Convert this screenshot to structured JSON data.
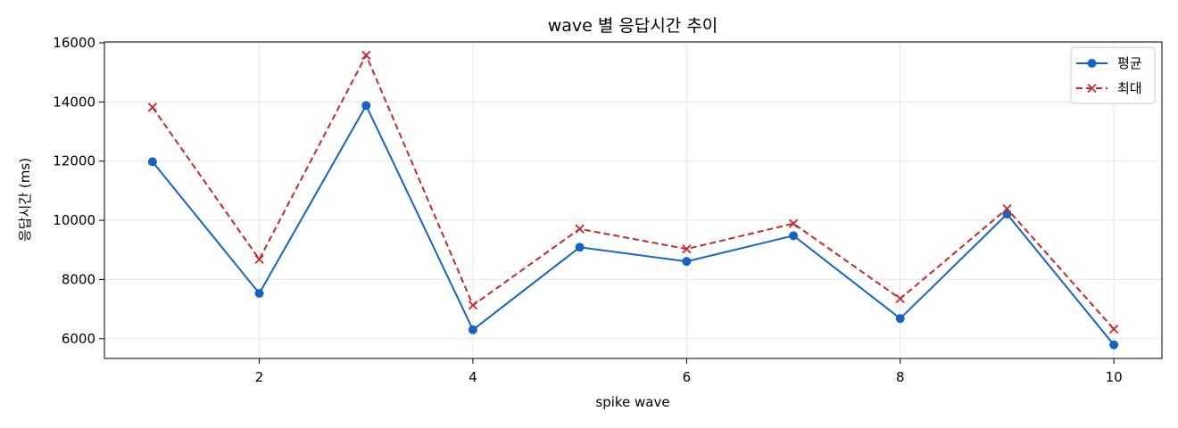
{
  "chart_data": {
    "type": "line",
    "title": "wave 별 응답시간 추이",
    "xlabel": "spike wave",
    "ylabel": "응답시간 (ms)",
    "x": [
      1,
      2,
      3,
      4,
      5,
      6,
      7,
      8,
      9,
      10
    ],
    "xlim": [
      0.55,
      10.45
    ],
    "ylim": [
      5330,
      16030
    ],
    "xticks": [
      2,
      4,
      6,
      8,
      10
    ],
    "yticks": [
      6000,
      8000,
      10000,
      12000,
      14000,
      16000
    ],
    "grid": true,
    "legend_position": "top-right",
    "series": [
      {
        "name": "평균",
        "values": [
          11980,
          7530,
          13880,
          6300,
          9090,
          8610,
          9480,
          6680,
          10210,
          5790
        ],
        "color": "#1565c0",
        "line_style": "solid",
        "marker": "circle"
      },
      {
        "name": "최대",
        "values": [
          13820,
          8680,
          15580,
          7130,
          9710,
          9030,
          9890,
          7350,
          10390,
          6320
        ],
        "color": "#c62828",
        "line_style": "dashed",
        "marker": "x"
      }
    ]
  }
}
